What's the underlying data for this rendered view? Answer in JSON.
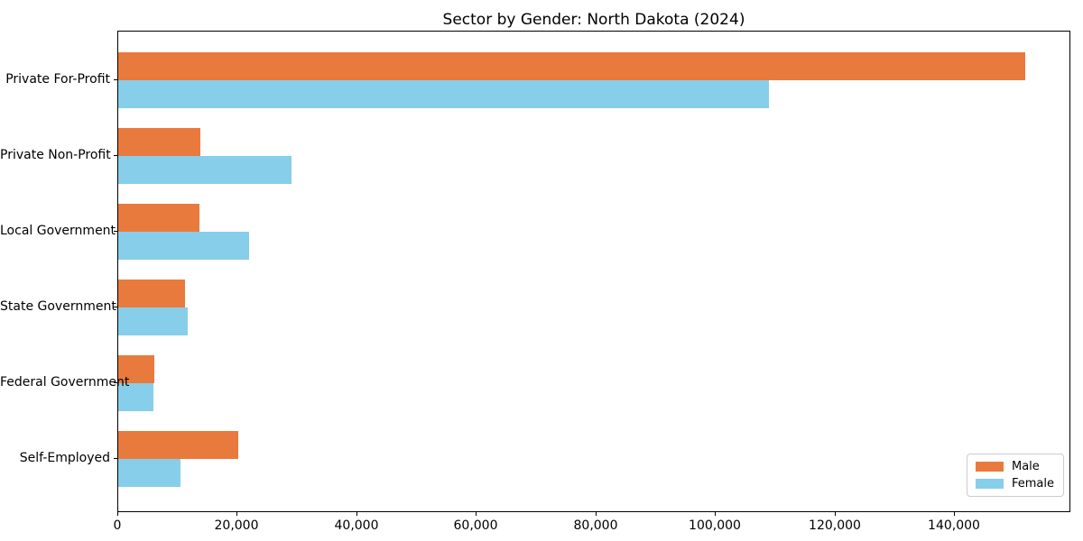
{
  "chart_data": {
    "type": "bar",
    "orientation": "horizontal",
    "title": "Sector by Gender: North Dakota (2024)",
    "categories": [
      "Private For-Profit",
      "Private Non-Profit",
      "Local Government",
      "State Government",
      "Federal Government",
      "Self-Employed"
    ],
    "series": [
      {
        "name": "Male",
        "color": "#e97a3d",
        "values": [
          151700,
          13700,
          13600,
          11200,
          6100,
          20100
        ]
      },
      {
        "name": "Female",
        "color": "#87ceeb",
        "values": [
          108800,
          29000,
          21900,
          11600,
          5900,
          10400
        ]
      }
    ],
    "xlabel": "",
    "ylabel": "",
    "xlim": [
      0,
      159400
    ],
    "x_ticks": [
      0,
      20000,
      40000,
      60000,
      80000,
      100000,
      120000,
      140000
    ],
    "x_tick_labels": [
      "0",
      "20,000",
      "40,000",
      "60,000",
      "80,000",
      "100,000",
      "120,000",
      "140,000"
    ],
    "legend_position": "lower right",
    "grid": false,
    "background_color": "#ffffff",
    "frame_color": "#000000"
  }
}
